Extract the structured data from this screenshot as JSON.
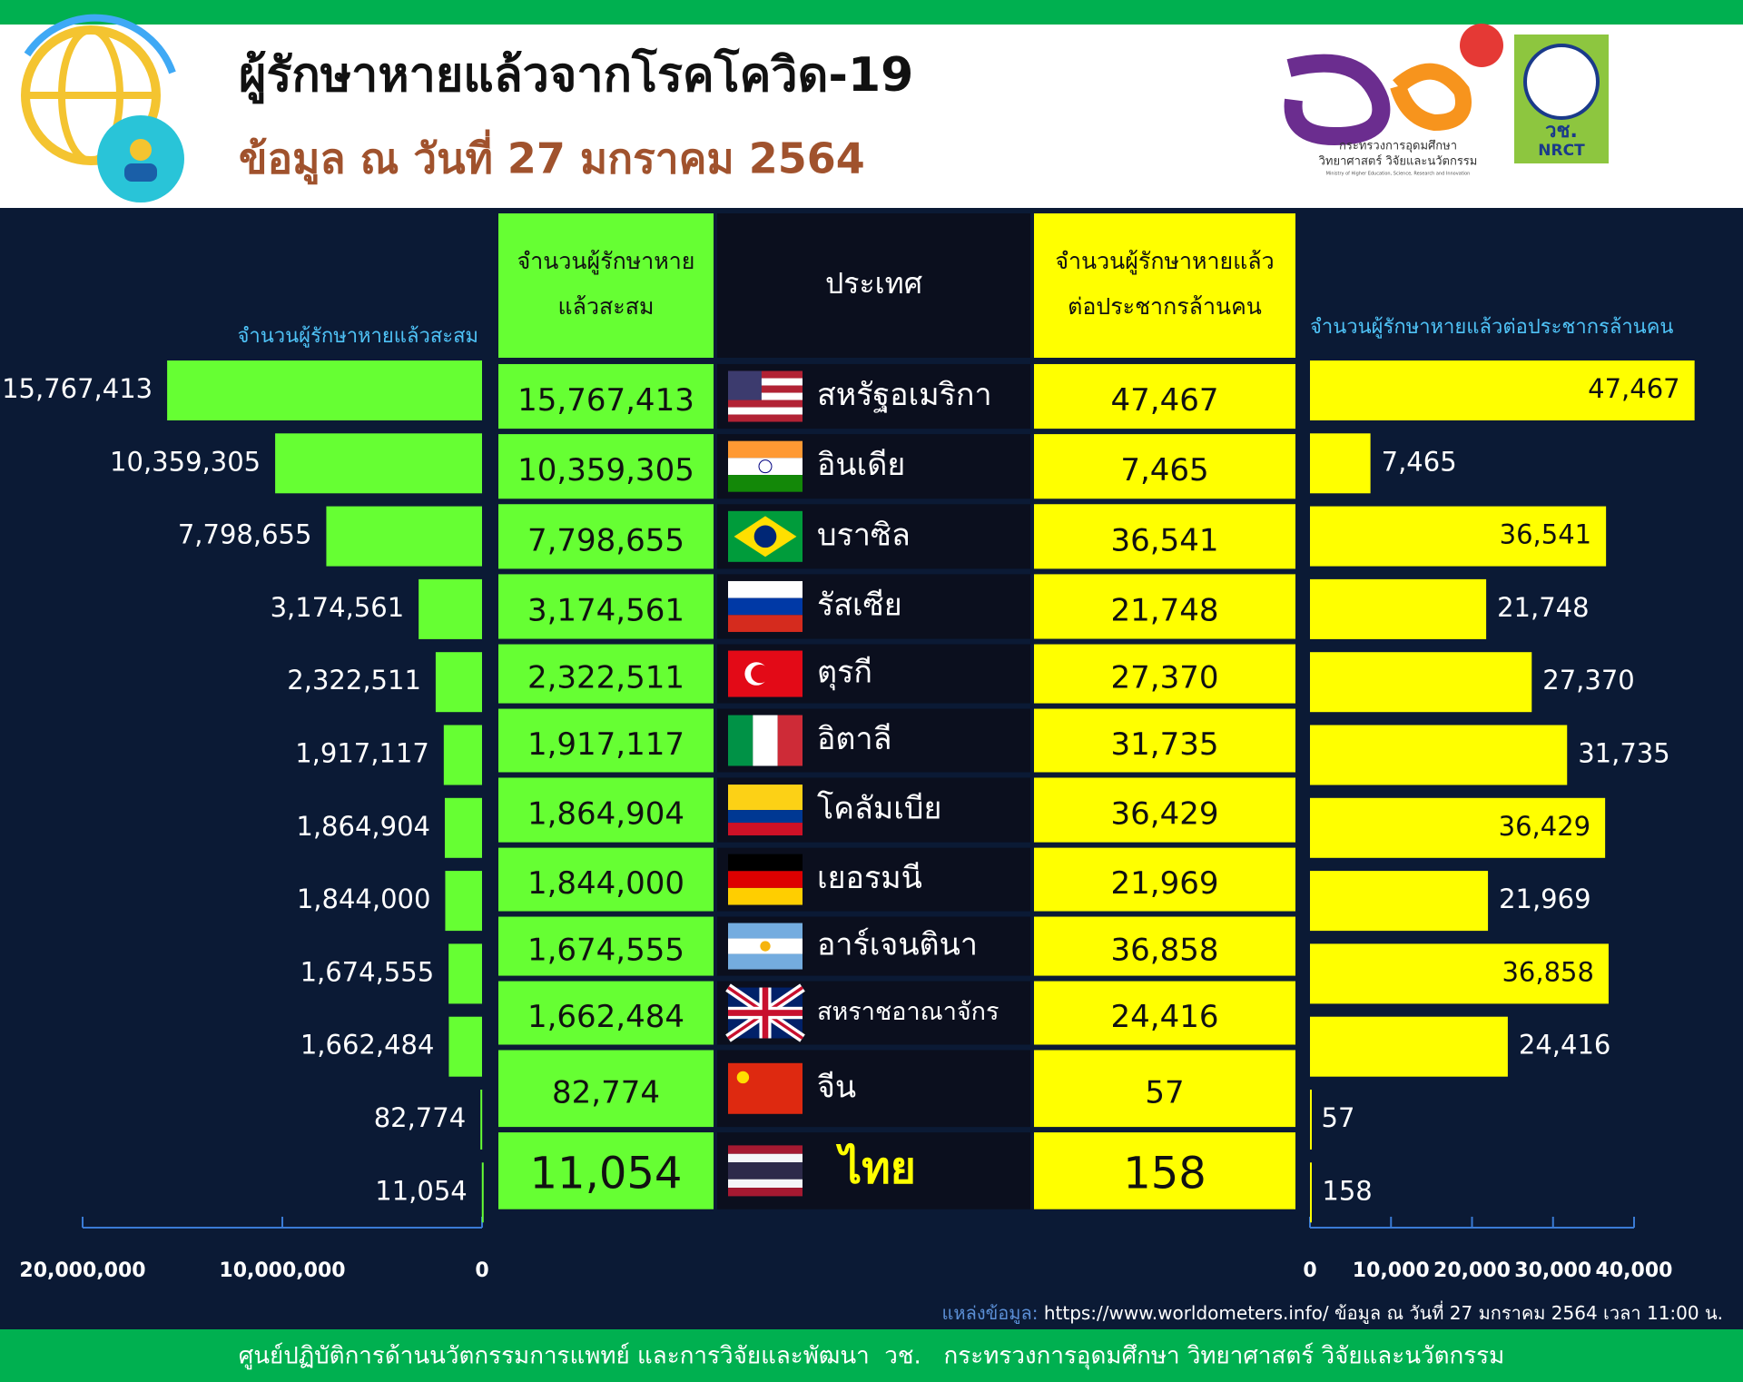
{
  "header": {
    "title": "ผู้รักษาหายแล้วจากโรคโควิด-19",
    "subtitle": "ข้อมูล ณ วันที่ 27 มกราคม 2564",
    "logo_text": [
      "กระทรวงการอุดมศึกษา",
      "วิทยาศาสตร์ วิจัยและนวัตกรรม",
      "Ministry of Higher Education, Science, Research and Innovation"
    ],
    "nrct": [
      "วช.",
      "NRCT"
    ]
  },
  "chart_data": [
    {
      "type": "bar",
      "orientation": "horizontal",
      "xreverse": true,
      "title": "จำนวนผู้รักษาหายแล้วสะสม",
      "color": "#66ff33",
      "values": [
        15767413,
        10359305,
        7798655,
        3174561,
        2322511,
        1917117,
        1864904,
        1844000,
        1674555,
        1662484,
        82774,
        11054
      ],
      "value_labels": [
        "15,767,413",
        "10,359,305",
        "7,798,655",
        "3,174,561",
        "2,322,511",
        "1,917,117",
        "1,864,904",
        "1,844,000",
        "1,674,555",
        "1,662,484",
        "82,774",
        "11,054"
      ],
      "xlim": [
        0,
        20000000
      ],
      "xticks": [
        {
          "value": 20000000,
          "label": "20,000,000"
        },
        {
          "value": 10000000,
          "label": "10,000,000"
        },
        0
      ]
    },
    {
      "type": "bar",
      "orientation": "horizontal",
      "title": "จำนวนผู้รักษาหายแล้วต่อประชากรล้านคน",
      "color": "#ffff00",
      "values": [
        47467,
        7465,
        36541,
        21748,
        27370,
        31735,
        36429,
        21969,
        36858,
        24416,
        57,
        158
      ],
      "value_labels": [
        "47,467",
        "7,465",
        "36,541",
        "21,748",
        "27,370",
        "31,735",
        "36,429",
        "21,969",
        "36,858",
        "24,416",
        "57",
        "158"
      ],
      "xlim": [
        0,
        40000
      ],
      "xticks": [
        0,
        {
          "value": 10000,
          "label": "10,000"
        },
        {
          "value": 20000,
          "label": "20,000"
        },
        {
          "value": 30000,
          "label": "30,000"
        },
        {
          "value": 40000,
          "label": "40,000"
        }
      ]
    }
  ],
  "table": {
    "header": [
      [
        "จำนวนผู้รักษาหาย",
        "แล้วสะสม"
      ],
      [
        "ประเทศ"
      ],
      [
        "จำนวนผู้รักษาหายแล้ว",
        "ต่อประชากรล้านคน"
      ]
    ],
    "rows": [
      [
        "15,767,413",
        "สหรัฐอเมริกา",
        "47,467"
      ],
      [
        "10,359,305",
        "อินเดีย",
        "7,465"
      ],
      [
        "7,798,655",
        "บราซิล",
        "36,541"
      ],
      [
        "3,174,561",
        "รัสเซีย",
        "21,748"
      ],
      [
        "2,322,511",
        "ตุรกี",
        "27,370"
      ],
      [
        "1,917,117",
        "อิตาลี",
        "31,735"
      ],
      [
        "1,864,904",
        "โคลัมเบีย",
        "36,429"
      ],
      [
        "1,844,000",
        "เยอรมนี",
        "21,969"
      ],
      [
        "1,674,555",
        "อาร์เจนตินา",
        "36,858"
      ],
      [
        "1,662,484",
        "สหราชอาณาจักร",
        "24,416"
      ],
      [
        "82,774",
        "จีน",
        "57"
      ],
      [
        "11,054",
        "ไทย",
        "158"
      ]
    ]
  },
  "source": {
    "label": "แหล่งข้อมูล:",
    "url": "https://www.worldometers.info/",
    "note": "ข้อมูล ณ วันที่ 27 มกราคม 2564 เวลา 11:00 น."
  },
  "footer": "ศูนย์ปฏิบัติการด้านนวัตกรรมการแพทย์ และการวิจัยและพัฒนา  วช.   กระทรวงการอุดมศึกษา วิทยาศาสตร์ วิจัยและนวัตกรรม"
}
